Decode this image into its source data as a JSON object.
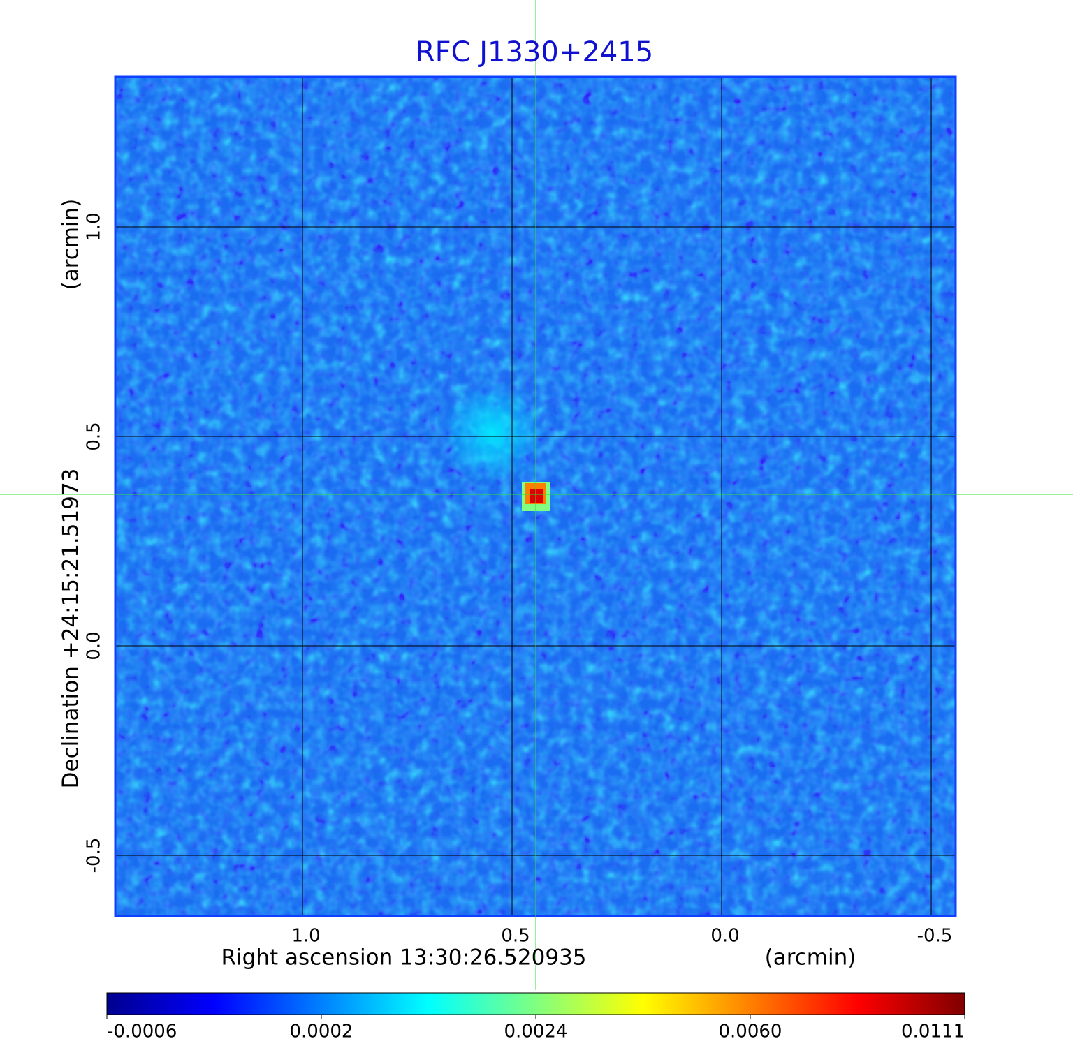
{
  "chart_data": {
    "type": "image",
    "title": "RFC J1330+2415",
    "x_label": "Right ascension  13:30:26.520935",
    "x_unit": "(arcmin)",
    "y_label": "Declination  +24:15:21.51973",
    "y_unit": "(arcmin)",
    "xlim": [
      1.4467,
      -0.5583
    ],
    "ylim": [
      -0.645,
      1.3583
    ],
    "xticks": [
      {
        "value": 1,
        "label": "1.0"
      },
      0.5,
      {
        "value": 0,
        "label": "0.0"
      },
      -0.5
    ],
    "yticks": [
      {
        "value": 1,
        "label": "1.0"
      },
      0.5,
      {
        "value": 0,
        "label": "0.0"
      },
      -0.5
    ],
    "grid": true,
    "colormap": [
      "#00008f",
      "#0000ff",
      "#0080ff",
      "#00ffff",
      "#80ff80",
      "#ffff00",
      "#ff8000",
      "#ff0000",
      "#800000"
    ],
    "colorbar_ticks": [
      -0.0006,
      0.0002,
      0.0024,
      {
        "value": 0.006,
        "label": "0.0060"
      },
      0.0111
    ]
  }
}
